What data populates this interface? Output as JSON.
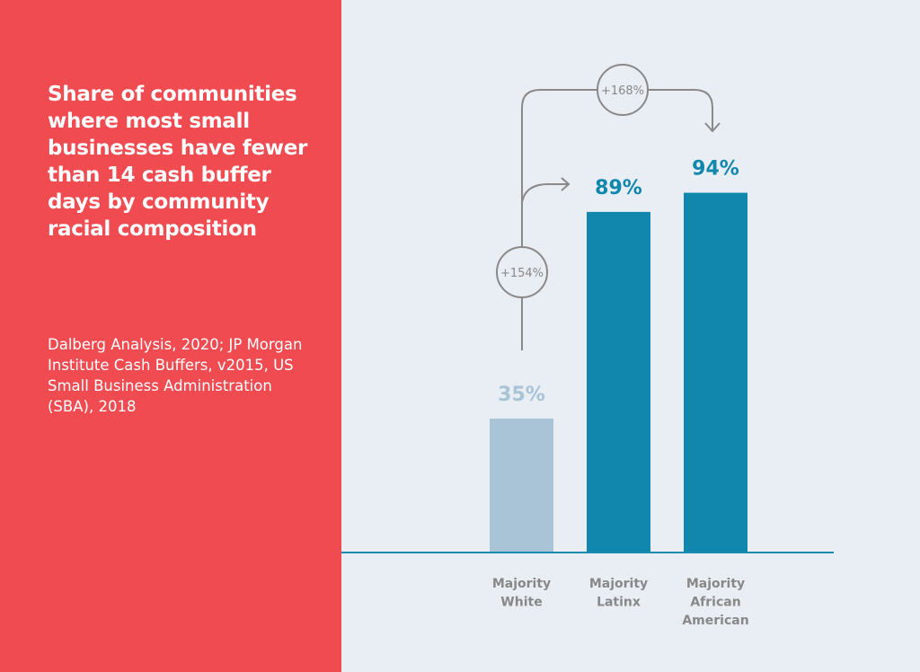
{
  "chart_data": {
    "type": "bar",
    "title": "Share of communities where most small businesses have fewer than 14 cash buffer days by community racial composition",
    "source": "Dalberg Analysis, 2020; JP Morgan Institute Cash Buffers, v2015, US Small Business Administration (SBA), 2018",
    "categories": [
      [
        "Majority",
        "White"
      ],
      [
        "Majority",
        "Latinx"
      ],
      [
        "Majority",
        "African",
        "American"
      ]
    ],
    "values": [
      35,
      89,
      94
    ],
    "value_labels": [
      "35%",
      "89%",
      "94%"
    ],
    "bar_colors": [
      "#a8c4d6",
      "#1187ad",
      "#1187ad"
    ],
    "label_colors": [
      "#a8c4d6",
      "#1187ad",
      "#1187ad"
    ],
    "ylim": [
      0,
      100
    ],
    "grid": false,
    "annotations": [
      {
        "label": "+154%",
        "from": "Majority White",
        "to": "Majority Latinx"
      },
      {
        "label": "+168%",
        "from": "Majority White",
        "to": "Majority African American"
      }
    ]
  },
  "colors": {
    "left_panel": "#ef4b50",
    "background": "#e9eef4",
    "axis": "#1a8cb0",
    "annotation": "#8a8888"
  }
}
